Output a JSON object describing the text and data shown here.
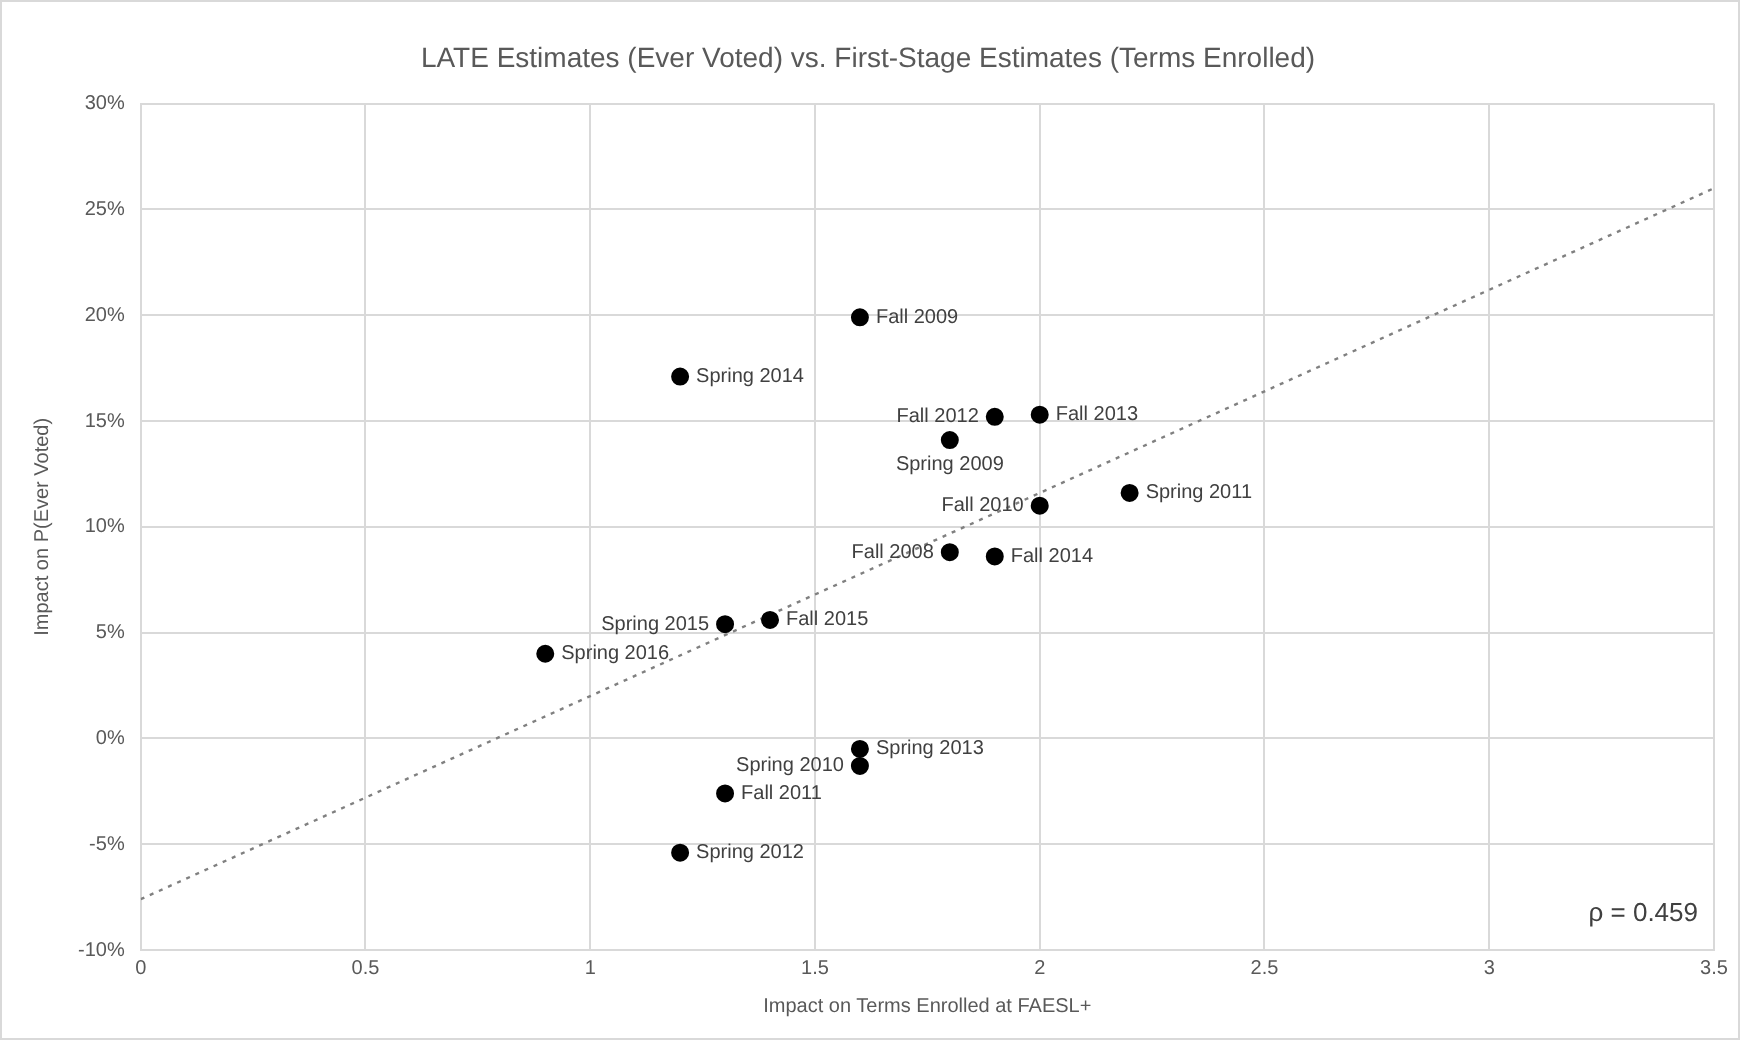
{
  "chart_data": {
    "type": "scatter",
    "title": "LATE Estimates (Ever Voted) vs. First-Stage Estimates (Terms Enrolled)",
    "xlabel": "Impact on Terms Enrolled at FAESL+",
    "ylabel": "Impact on P(Ever Voted)",
    "series": [
      {
        "color": "#000000",
        "x": [
          1.6,
          1.2,
          1.9,
          2.0,
          1.8,
          2.2,
          2.0,
          1.8,
          1.9,
          1.3,
          1.4,
          0.9,
          1.6,
          1.6,
          1.3,
          1.2
        ],
        "values": [
          19.9,
          17.1,
          15.2,
          15.3,
          14.1,
          11.6,
          11.0,
          8.8,
          8.6,
          5.4,
          5.6,
          4.0,
          -0.5,
          -1.3,
          -2.6,
          -5.4
        ]
      },
      {
        "type": "line",
        "color": "#808080",
        "line_style": "dotted",
        "marker": "none",
        "x": [
          0,
          3.5
        ],
        "values": [
          -7.6,
          26
        ]
      }
    ],
    "xlim": [
      0,
      3.5
    ],
    "xticks": [
      0,
      0.5,
      1,
      1.5,
      2,
      2.5,
      3,
      3.5
    ],
    "ylim": [
      -10,
      30
    ],
    "yticks": [
      {
        "value": -10,
        "label": "-10%"
      },
      {
        "value": -5,
        "label": "-5%"
      },
      {
        "value": 0,
        "label": "0%"
      },
      {
        "value": 5,
        "label": "5%"
      },
      {
        "value": 10,
        "label": "10%"
      },
      {
        "value": 15,
        "label": "15%"
      },
      {
        "value": 20,
        "label": "20%"
      },
      {
        "value": 25,
        "label": "25%"
      },
      {
        "value": 30,
        "label": "30%"
      }
    ],
    "grid": true,
    "legend": false,
    "marker": "circle",
    "annotations": [
      {
        "text": "Fall 2009",
        "x": 1.6,
        "y": 19.9
      },
      {
        "text": "Spring 2014",
        "x": 1.2,
        "y": 17.1
      },
      {
        "text": "Fall 2012",
        "x": 1.9,
        "y": 15.2
      },
      {
        "text": "Fall 2013",
        "x": 2.0,
        "y": 15.3
      },
      {
        "text": "Spring 2009",
        "x": 1.8,
        "y": 14.1
      },
      {
        "text": "Spring 2011",
        "x": 2.2,
        "y": 11.6
      },
      {
        "text": "Fall 2010",
        "x": 2.0,
        "y": 11.0
      },
      {
        "text": "Fall 2008",
        "x": 1.8,
        "y": 8.8
      },
      {
        "text": "Fall 2014",
        "x": 1.9,
        "y": 8.6
      },
      {
        "text": "Spring 2015",
        "x": 1.3,
        "y": 5.4
      },
      {
        "text": "Fall 2015",
        "x": 1.4,
        "y": 5.6
      },
      {
        "text": "Spring 2016",
        "x": 0.9,
        "y": 4.0
      },
      {
        "text": "Spring 2013",
        "x": 1.6,
        "y": -0.5
      },
      {
        "text": "Spring 2010",
        "x": 1.6,
        "y": -1.3
      },
      {
        "text": "Fall 2011",
        "x": 1.3,
        "y": -2.6
      },
      {
        "text": "Spring 2012",
        "x": 1.2,
        "y": -5.4
      },
      "ρ = 0.459"
    ]
  }
}
